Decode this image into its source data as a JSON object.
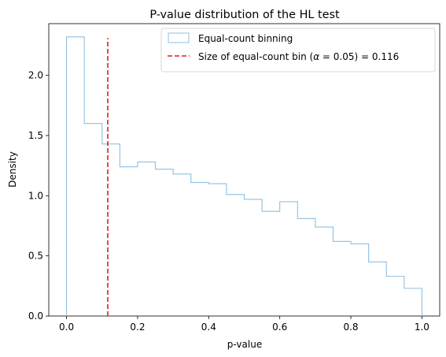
{
  "chart_data": {
    "type": "histogram-step",
    "title": "P-value distribution of the HL test",
    "xlabel": "p-value",
    "ylabel": "Density",
    "xlim": [
      -0.05,
      1.05
    ],
    "ylim": [
      0.0,
      2.43
    ],
    "xticks": [
      "0.0",
      "0.2",
      "0.4",
      "0.6",
      "0.8",
      "1.0"
    ],
    "xtick_values": [
      0.0,
      0.2,
      0.4,
      0.6,
      0.8,
      1.0
    ],
    "yticks": [
      "0.0",
      "0.5",
      "1.0",
      "1.5",
      "2.0"
    ],
    "ytick_values": [
      0.0,
      0.5,
      1.0,
      1.5,
      2.0
    ],
    "grid": false,
    "legend_position": "upper right",
    "series": [
      {
        "name": "Equal-count binning",
        "kind": "step-histogram",
        "color": "#8fbfe0",
        "bin_edges": [
          0.0,
          0.05,
          0.1,
          0.15,
          0.2,
          0.25,
          0.3,
          0.35,
          0.4,
          0.45,
          0.5,
          0.55,
          0.6,
          0.65,
          0.7,
          0.75,
          0.8,
          0.85,
          0.9,
          0.95,
          1.0
        ],
        "densities": [
          2.32,
          1.6,
          1.43,
          1.24,
          1.28,
          1.22,
          1.18,
          1.11,
          1.1,
          1.01,
          0.97,
          0.87,
          0.95,
          0.81,
          0.74,
          0.62,
          0.6,
          0.45,
          0.33,
          0.23
        ]
      },
      {
        "name_prefix": "Size of equal-count bin (",
        "name_alpha": "α",
        "name_eq": " = 0.05) = 0.116",
        "kind": "vline",
        "color": "#e41a1c",
        "x": 0.116,
        "y_range": [
          0.0,
          2.31
        ]
      }
    ]
  }
}
